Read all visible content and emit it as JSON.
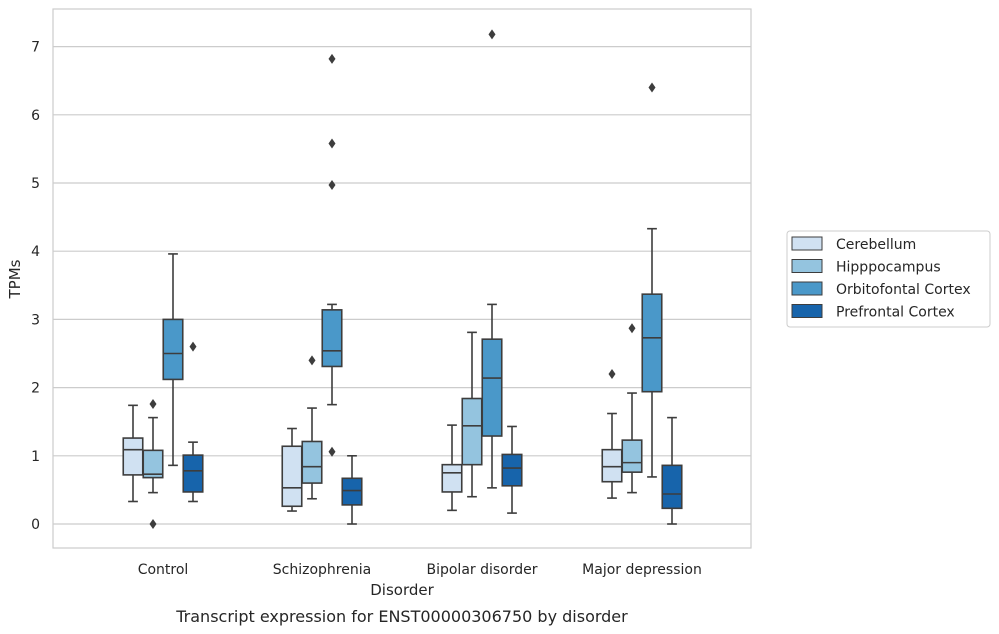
{
  "chart_data": {
    "type": "box",
    "title": "",
    "caption": "Transcript expression for ENST00000306750 by disorder",
    "xlabel": "Disorder",
    "ylabel": "TPMs",
    "ylim": [
      -0.35,
      7.55
    ],
    "yticks": [
      0,
      1,
      2,
      3,
      4,
      5,
      6,
      7
    ],
    "grid": "horizontal",
    "legend_position": "right",
    "categories": [
      "Control",
      "Schizophrenia",
      "Bipolar disorder",
      "Major depression"
    ],
    "series": [
      {
        "name": "Cerebellum",
        "color": "#d0e1f2",
        "boxes": [
          {
            "whislo": 0.33,
            "q1": 0.72,
            "med": 1.09,
            "q3": 1.26,
            "whishi": 1.74,
            "fliers": []
          },
          {
            "whislo": 0.19,
            "q1": 0.26,
            "med": 0.53,
            "q3": 1.14,
            "whishi": 1.4,
            "fliers": []
          },
          {
            "whislo": 0.2,
            "q1": 0.47,
            "med": 0.75,
            "q3": 0.87,
            "whishi": 1.45,
            "fliers": []
          },
          {
            "whislo": 0.38,
            "q1": 0.62,
            "med": 0.84,
            "q3": 1.09,
            "whishi": 1.62,
            "fliers": [
              2.2
            ]
          }
        ]
      },
      {
        "name": "Hipppocampus",
        "color": "#94c4df",
        "boxes": [
          {
            "whislo": 0.46,
            "q1": 0.68,
            "med": 0.73,
            "q3": 1.08,
            "whishi": 1.56,
            "fliers": [
              1.76,
              0.0
            ]
          },
          {
            "whislo": 0.37,
            "q1": 0.6,
            "med": 0.84,
            "q3": 1.21,
            "whishi": 1.7,
            "fliers": [
              2.4
            ]
          },
          {
            "whislo": 0.4,
            "q1": 0.87,
            "med": 1.44,
            "q3": 1.84,
            "whishi": 2.81,
            "fliers": []
          },
          {
            "whislo": 0.46,
            "q1": 0.76,
            "med": 0.9,
            "q3": 1.23,
            "whishi": 1.92,
            "fliers": [
              2.87
            ]
          }
        ]
      },
      {
        "name": "Orbitofontal Cortex",
        "color": "#4a98c9",
        "boxes": [
          {
            "whislo": 0.86,
            "q1": 2.12,
            "med": 2.5,
            "q3": 3.0,
            "whishi": 3.96,
            "fliers": []
          },
          {
            "whislo": 1.75,
            "q1": 2.31,
            "med": 2.54,
            "q3": 3.14,
            "whishi": 3.22,
            "fliers": [
              4.97,
              5.58,
              6.82,
              1.06
            ]
          },
          {
            "whislo": 0.53,
            "q1": 1.29,
            "med": 2.14,
            "q3": 2.71,
            "whishi": 3.22,
            "fliers": [
              7.18
            ]
          },
          {
            "whislo": 0.69,
            "q1": 1.94,
            "med": 2.73,
            "q3": 3.37,
            "whishi": 4.33,
            "fliers": [
              6.4
            ]
          }
        ]
      },
      {
        "name": "Prefrontal Cortex",
        "color": "#1764ab",
        "boxes": [
          {
            "whislo": 0.33,
            "q1": 0.47,
            "med": 0.78,
            "q3": 1.01,
            "whishi": 1.2,
            "fliers": [
              2.6
            ]
          },
          {
            "whislo": 0.0,
            "q1": 0.28,
            "med": 0.49,
            "q3": 0.67,
            "whishi": 1.0,
            "fliers": []
          },
          {
            "whislo": 0.16,
            "q1": 0.56,
            "med": 0.82,
            "q3": 1.02,
            "whishi": 1.43,
            "fliers": []
          },
          {
            "whislo": 0.0,
            "q1": 0.23,
            "med": 0.44,
            "q3": 0.86,
            "whishi": 1.56,
            "fliers": []
          }
        ]
      }
    ]
  }
}
